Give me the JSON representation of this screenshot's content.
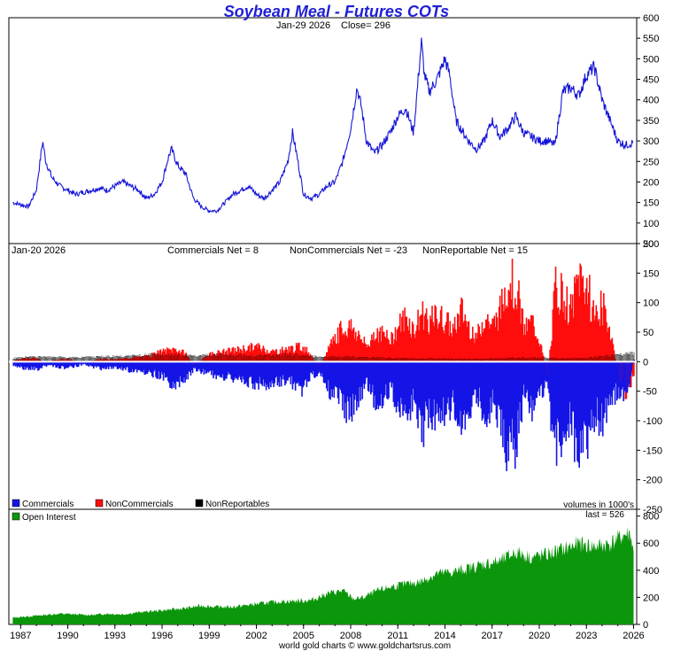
{
  "chart_data": [
    {
      "type": "line",
      "title": "Soybean Meal - Futures COTs",
      "subtitle_date": "Jan-29  2026",
      "subtitle_close": "Close= 296",
      "ylim": [
        50,
        600
      ],
      "yticks": [
        50,
        100,
        150,
        200,
        250,
        300,
        350,
        400,
        450,
        500,
        550,
        600
      ],
      "color": "#1515d8",
      "series": [
        {
          "x": [
            1986.5,
            1987.0,
            1987.5,
            1988.0,
            1988.4,
            1988.6,
            1989.0,
            1989.5,
            1990.0,
            1990.5,
            1991.0,
            1991.5,
            1992.0,
            1992.5,
            1993.0,
            1993.5,
            1994.0,
            1994.5,
            1995.0,
            1995.5,
            1996.0,
            1996.4,
            1996.6,
            1997.0,
            1997.5,
            1998.0,
            1998.5,
            1999.0,
            1999.5,
            2000.0,
            2000.5,
            2001.0,
            2001.5,
            2002.0,
            2002.5,
            2003.0,
            2003.5,
            2004.0,
            2004.3,
            2004.6,
            2005.0,
            2005.5,
            2006.0,
            2006.5,
            2007.0,
            2007.5,
            2008.0,
            2008.4,
            2008.7,
            2009.0,
            2009.5,
            2010.0,
            2010.5,
            2011.0,
            2011.5,
            2012.0,
            2012.5,
            2012.7,
            2013.0,
            2013.5,
            2014.0,
            2014.3,
            2014.7,
            2015.0,
            2015.5,
            2016.0,
            2016.5,
            2017.0,
            2017.5,
            2018.0,
            2018.5,
            2019.0,
            2019.5,
            2020.0,
            2020.5,
            2021.0,
            2021.5,
            2022.0,
            2022.5,
            2023.0,
            2023.5,
            2024.0,
            2024.5,
            2025.0,
            2025.5,
            2026.0
          ],
          "y": [
            150,
            145,
            140,
            180,
            300,
            250,
            210,
            190,
            180,
            170,
            175,
            180,
            185,
            180,
            190,
            200,
            190,
            180,
            160,
            170,
            200,
            260,
            280,
            240,
            220,
            160,
            140,
            130,
            130,
            150,
            170,
            180,
            190,
            170,
            160,
            180,
            200,
            250,
            320,
            260,
            170,
            160,
            170,
            190,
            200,
            250,
            330,
            430,
            380,
            300,
            270,
            290,
            320,
            360,
            380,
            320,
            540,
            460,
            420,
            450,
            500,
            460,
            350,
            330,
            300,
            280,
            300,
            350,
            310,
            330,
            360,
            320,
            310,
            300,
            300,
            290,
            420,
            430,
            410,
            460,
            480,
            400,
            350,
            300,
            290,
            296
          ]
        }
      ]
    },
    {
      "type": "bar",
      "subtitle_date": "Jan-20  2026",
      "labels": [
        "Commercials Net = 8",
        "NonCommercials Net = -23",
        "NonReportable Net = 15"
      ],
      "legend": [
        "Commercials",
        "NonCommercials",
        "NonReportables"
      ],
      "colors": [
        "#1414e6",
        "#ff0d0d",
        "#000000"
      ],
      "ylim": [
        -250,
        200
      ],
      "yticks": [
        -250,
        -200,
        -150,
        -100,
        -50,
        0,
        50,
        100,
        150,
        200
      ],
      "units_note": "volumes in 1000's",
      "series": [
        {
          "name": "NonCommercials",
          "x": [
            1986.5,
            1987.0,
            1988.0,
            1988.5,
            1989.0,
            1990.0,
            1991.0,
            1992.0,
            1993.0,
            1994.0,
            1995.0,
            1996.0,
            1996.8,
            1997.5,
            1998.0,
            1998.5,
            1999.0,
            2000.0,
            2001.0,
            2002.0,
            2003.0,
            2004.0,
            2004.8,
            2005.3,
            2006.0,
            2006.7,
            2007.3,
            2008.0,
            2008.5,
            2009.0,
            2009.5,
            2010.0,
            2010.5,
            2011.0,
            2011.5,
            2012.0,
            2012.5,
            2013.0,
            2013.5,
            2014.0,
            2014.5,
            2015.0,
            2015.5,
            2016.0,
            2016.5,
            2017.0,
            2017.5,
            2018.0,
            2018.5,
            2019.0,
            2019.5,
            2020.0,
            2020.5,
            2021.0,
            2021.5,
            2022.0,
            2022.5,
            2023.0,
            2023.5,
            2024.0,
            2024.5,
            2025.0,
            2025.5,
            2026.0
          ],
          "y": [
            2,
            5,
            8,
            -5,
            3,
            5,
            -3,
            6,
            4,
            8,
            10,
            20,
            25,
            15,
            -10,
            5,
            15,
            20,
            25,
            30,
            20,
            25,
            30,
            20,
            -15,
            40,
            60,
            70,
            50,
            30,
            60,
            55,
            40,
            70,
            90,
            60,
            100,
            80,
            90,
            80,
            60,
            100,
            70,
            50,
            90,
            70,
            100,
            170,
            150,
            60,
            80,
            40,
            -30,
            150,
            130,
            100,
            170,
            150,
            90,
            110,
            60,
            -30,
            -60,
            -23
          ]
        },
        {
          "name": "Commercials",
          "x": [
            1986.5,
            1987.0,
            1988.0,
            1988.5,
            1989.0,
            1990.0,
            1991.0,
            1992.0,
            1993.0,
            1994.0,
            1995.0,
            1996.0,
            1996.8,
            1997.5,
            1998.0,
            1998.5,
            1999.0,
            2000.0,
            2001.0,
            2002.0,
            2003.0,
            2004.0,
            2004.8,
            2005.3,
            2006.0,
            2006.7,
            2007.3,
            2008.0,
            2008.5,
            2009.0,
            2009.5,
            2010.0,
            2010.5,
            2011.0,
            2011.5,
            2012.0,
            2012.5,
            2013.0,
            2013.5,
            2014.0,
            2014.5,
            2015.0,
            2015.5,
            2016.0,
            2016.5,
            2017.0,
            2017.5,
            2018.0,
            2018.5,
            2019.0,
            2019.5,
            2020.0,
            2020.5,
            2021.0,
            2021.5,
            2022.0,
            2022.5,
            2023.0,
            2023.5,
            2024.0,
            2024.5,
            2025.0,
            2025.5,
            2026.0
          ],
          "y": [
            -8,
            -12,
            -15,
            -8,
            -10,
            -12,
            -5,
            -14,
            -10,
            -18,
            -20,
            -30,
            -45,
            -30,
            -15,
            -20,
            -25,
            -30,
            -35,
            -45,
            -40,
            -40,
            -55,
            -35,
            -20,
            -60,
            -80,
            -100,
            -70,
            -40,
            -80,
            -75,
            -55,
            -100,
            -110,
            -80,
            -130,
            -110,
            -100,
            -100,
            -80,
            -120,
            -90,
            -60,
            -110,
            -80,
            -130,
            -185,
            -160,
            -60,
            -90,
            -50,
            -60,
            -165,
            -140,
            -120,
            -190,
            -160,
            -100,
            -120,
            -70,
            -60,
            -80,
            8
          ]
        },
        {
          "name": "NonReportables",
          "x": [
            1986.5,
            1988.0,
            1990.0,
            1992.0,
            1994.0,
            1996.0,
            1998.0,
            2000.0,
            2002.0,
            2004.0,
            2006.0,
            2008.0,
            2010.0,
            2012.0,
            2014.0,
            2016.0,
            2018.0,
            2020.0,
            2022.0,
            2024.0,
            2026.0
          ],
          "y": [
            6,
            8,
            7,
            8,
            10,
            12,
            10,
            12,
            10,
            12,
            8,
            8,
            6,
            5,
            5,
            4,
            6,
            6,
            5,
            8,
            15
          ]
        }
      ]
    },
    {
      "type": "area",
      "legend": [
        "Open Interest"
      ],
      "color": "#0c960c",
      "last_label": "last = 526",
      "ylim": [
        0,
        850
      ],
      "yticks": [
        0,
        200,
        400,
        600,
        800
      ],
      "xticks": [
        "1987",
        "1990",
        "1993",
        "1996",
        "1999",
        "2002",
        "2005",
        "2008",
        "2011",
        "2014",
        "2017",
        "2020",
        "2023",
        "2026"
      ],
      "series": [
        {
          "x": [
            1986.5,
            1987.5,
            1988.5,
            1989.5,
            1990.5,
            1991.5,
            1992.5,
            1993.5,
            1994.5,
            1995.5,
            1996.5,
            1997.5,
            1998.5,
            1999.5,
            2000.5,
            2001.5,
            2002.5,
            2003.5,
            2004.5,
            2005.5,
            2006.5,
            2007.5,
            2008.2,
            2008.8,
            2009.5,
            2010.5,
            2011.5,
            2012.5,
            2013.5,
            2014.5,
            2015.5,
            2016.5,
            2017.5,
            2018.5,
            2019.5,
            2020.5,
            2021.5,
            2022.5,
            2023.5,
            2024.5,
            2025.3,
            2025.8,
            2026.0
          ],
          "y": [
            50,
            60,
            70,
            80,
            75,
            70,
            80,
            75,
            90,
            100,
            110,
            120,
            140,
            130,
            130,
            145,
            160,
            170,
            175,
            180,
            230,
            250,
            190,
            200,
            240,
            280,
            300,
            320,
            380,
            390,
            420,
            450,
            470,
            540,
            500,
            520,
            560,
            600,
            580,
            600,
            660,
            680,
            526
          ]
        }
      ]
    }
  ],
  "footer": "world gold charts © www.goldchartsrus.com"
}
